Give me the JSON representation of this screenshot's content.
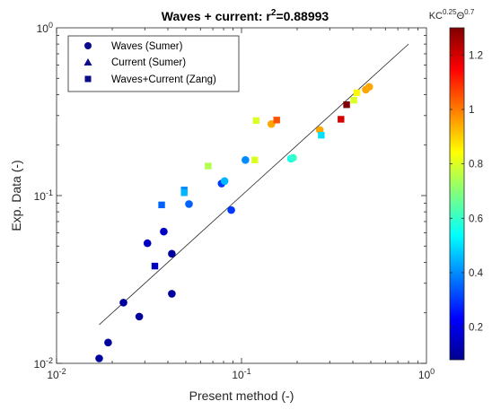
{
  "chart_data": {
    "type": "scatter",
    "title": {
      "main": "Waves + current: r",
      "sup": "2",
      "rest": "=0.88993"
    },
    "xlabel": "Present method (-)",
    "ylabel": "Exp. Data (-)",
    "xscale": "log",
    "yscale": "log",
    "xlim": [
      0.01,
      1
    ],
    "ylim": [
      0.01,
      1
    ],
    "x_ticks": [
      {
        "value": 0.01,
        "base": "10",
        "exp": "-2"
      },
      {
        "value": 0.1,
        "base": "10",
        "exp": "-1"
      },
      {
        "value": 1,
        "base": "10",
        "exp": "0"
      }
    ],
    "y_ticks": [
      {
        "value": 0.01,
        "base": "10",
        "exp": "-2"
      },
      {
        "value": 0.1,
        "base": "10",
        "exp": "-1"
      },
      {
        "value": 1,
        "base": "10",
        "exp": "0"
      }
    ],
    "legend_position": "top-left",
    "legend": [
      {
        "label": "Waves (Sumer)",
        "marker": "circle",
        "color": "#0a0a8c"
      },
      {
        "label": "Current (Sumer)",
        "marker": "triangle",
        "color": "#0a0a8c"
      },
      {
        "label": "Waves+Current (Zang)",
        "marker": "square",
        "color": "#0a0a8c"
      }
    ],
    "fit_line": {
      "x": [
        0.017,
        0.8
      ],
      "y": [
        0.017,
        0.8
      ]
    },
    "colorbar": {
      "label": {
        "base": "KC",
        "exp1": "0.25",
        "mid": "Θ",
        "exp2": "0.7"
      },
      "range": [
        0.08,
        1.3
      ],
      "ticks": [
        "0.2",
        "0.4",
        "0.6",
        "0.8",
        "1",
        "1.2"
      ],
      "tick_values": [
        0.2,
        0.4,
        0.6,
        0.8,
        1.0,
        1.2
      ],
      "colormap": "jet"
    },
    "series": [
      {
        "name": "Waves (Sumer)",
        "marker": "circle",
        "points": [
          {
            "x": 0.017,
            "y": 0.0107,
            "c": 0.1
          },
          {
            "x": 0.019,
            "y": 0.0133,
            "c": 0.1
          },
          {
            "x": 0.023,
            "y": 0.023,
            "c": 0.1
          },
          {
            "x": 0.028,
            "y": 0.019,
            "c": 0.1
          },
          {
            "x": 0.031,
            "y": 0.052,
            "c": 0.15
          },
          {
            "x": 0.038,
            "y": 0.061,
            "c": 0.15
          },
          {
            "x": 0.042,
            "y": 0.045,
            "c": 0.1
          },
          {
            "x": 0.042,
            "y": 0.026,
            "c": 0.1
          },
          {
            "x": 0.052,
            "y": 0.089,
            "c": 0.35
          },
          {
            "x": 0.078,
            "y": 0.118,
            "c": 0.3
          },
          {
            "x": 0.081,
            "y": 0.122,
            "c": 0.45
          },
          {
            "x": 0.088,
            "y": 0.082,
            "c": 0.3
          },
          {
            "x": 0.105,
            "y": 0.163,
            "c": 0.4
          },
          {
            "x": 0.185,
            "y": 0.166,
            "c": 0.55
          },
          {
            "x": 0.19,
            "y": 0.168,
            "c": 0.6
          },
          {
            "x": 0.145,
            "y": 0.267,
            "c": 0.95
          },
          {
            "x": 0.265,
            "y": 0.246,
            "c": 0.95
          },
          {
            "x": 0.47,
            "y": 0.428,
            "c": 0.95
          },
          {
            "x": 0.49,
            "y": 0.445,
            "c": 0.95
          }
        ]
      },
      {
        "name": "Waves+Current (Zang)",
        "marker": "square",
        "points": [
          {
            "x": 0.034,
            "y": 0.038,
            "c": 0.15
          },
          {
            "x": 0.037,
            "y": 0.088,
            "c": 0.35
          },
          {
            "x": 0.049,
            "y": 0.108,
            "c": 0.4
          },
          {
            "x": 0.049,
            "y": 0.104,
            "c": 0.45
          },
          {
            "x": 0.066,
            "y": 0.15,
            "c": 0.75
          },
          {
            "x": 0.12,
            "y": 0.28,
            "c": 0.8
          },
          {
            "x": 0.118,
            "y": 0.163,
            "c": 0.8
          },
          {
            "x": 0.155,
            "y": 0.282,
            "c": 1.05
          },
          {
            "x": 0.27,
            "y": 0.229,
            "c": 0.5
          },
          {
            "x": 0.345,
            "y": 0.285,
            "c": 1.2
          },
          {
            "x": 0.37,
            "y": 0.348,
            "c": 1.3
          },
          {
            "x": 0.405,
            "y": 0.37,
            "c": 0.8
          },
          {
            "x": 0.42,
            "y": 0.41,
            "c": 0.85
          }
        ]
      }
    ]
  }
}
